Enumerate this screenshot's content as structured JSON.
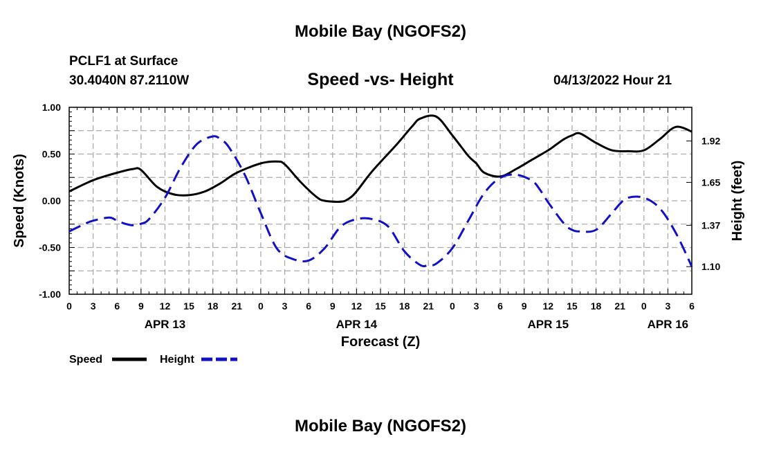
{
  "header": {
    "title": "Mobile Bay (NGOFS2)",
    "station": "PCLF1 at Surface",
    "coords": "30.4040N  87.2110W",
    "chart_title": "Speed -vs- Height",
    "datetime": "04/13/2022 Hour 21"
  },
  "footer": {
    "title": "Mobile Bay (NGOFS2)"
  },
  "colors": {
    "speed": "#000000",
    "height": "#1010c8",
    "grid": "#aaaaaa"
  },
  "chart_data": {
    "type": "line",
    "title": "Speed -vs- Height",
    "xlabel": "Forecast (Z)",
    "ylabel": "Speed (Knots)",
    "y2label": "Height (feet)",
    "x_unit": "hours from 2022-04-13 00Z",
    "xlim": [
      0,
      78
    ],
    "ylim": [
      -1.0,
      1.0
    ],
    "y2lim": [
      0.92,
      2.14
    ],
    "x_tick_labels": [
      "0",
      "3",
      "6",
      "9",
      "12",
      "15",
      "18",
      "21",
      "0",
      "3",
      "6",
      "9",
      "12",
      "15",
      "18",
      "21",
      "0",
      "3",
      "6",
      "9",
      "12",
      "15",
      "18",
      "21",
      "0",
      "3",
      "6"
    ],
    "date_labels": [
      {
        "label": "APR 13",
        "hour": 12
      },
      {
        "label": "APR 14",
        "hour": 36
      },
      {
        "label": "APR 15",
        "hour": 60
      },
      {
        "label": "APR 16",
        "hour": 75
      }
    ],
    "y_tick_labels": [
      "1.00",
      "0.50",
      "0.00",
      "-0.50",
      "-1.00"
    ],
    "y_ticks": [
      1.0,
      0.5,
      0.0,
      -0.5,
      -1.0
    ],
    "y2_tick_labels": [
      "1.92",
      "1.65",
      "1.37",
      "1.10"
    ],
    "y2_ticks": [
      1.92,
      1.65,
      1.37,
      1.1
    ],
    "grid": true,
    "legend_position": "bottom-left",
    "series": [
      {
        "name": "Speed",
        "axis": "left",
        "style": "solid",
        "x": [
          0,
          3,
          6,
          8,
          9,
          11,
          13,
          15,
          17,
          19,
          21,
          24,
          26,
          27,
          29,
          31,
          32,
          34,
          35,
          36,
          38,
          41,
          43,
          44,
          46,
          48,
          50,
          51,
          52,
          54,
          56,
          58,
          60,
          61,
          62,
          63,
          64,
          66,
          68,
          70,
          72,
          74,
          76,
          78
        ],
        "y": [
          0.1,
          0.22,
          0.3,
          0.34,
          0.33,
          0.15,
          0.07,
          0.06,
          0.1,
          0.19,
          0.3,
          0.4,
          0.42,
          0.39,
          0.2,
          0.04,
          0.0,
          -0.01,
          0.02,
          0.1,
          0.32,
          0.6,
          0.8,
          0.88,
          0.9,
          0.7,
          0.48,
          0.4,
          0.3,
          0.26,
          0.34,
          0.44,
          0.54,
          0.6,
          0.66,
          0.7,
          0.72,
          0.62,
          0.54,
          0.53,
          0.54,
          0.66,
          0.79,
          0.74
        ]
      },
      {
        "name": "Height",
        "axis": "right",
        "style": "dashed",
        "x": [
          0,
          2,
          3,
          5,
          6,
          7,
          8,
          9,
          10,
          12,
          14,
          16,
          18,
          19,
          20,
          22,
          24,
          26,
          28,
          30,
          32,
          34,
          36,
          38,
          40,
          42,
          44,
          45,
          46,
          48,
          50,
          52,
          54,
          56,
          58,
          59,
          60,
          62,
          63,
          64,
          66,
          68,
          69,
          70,
          72,
          74,
          76,
          78
        ],
        "y": [
          1.33,
          1.38,
          1.4,
          1.42,
          1.4,
          1.38,
          1.37,
          1.38,
          1.41,
          1.55,
          1.75,
          1.9,
          1.95,
          1.93,
          1.88,
          1.7,
          1.45,
          1.22,
          1.15,
          1.14,
          1.22,
          1.36,
          1.41,
          1.41,
          1.36,
          1.2,
          1.11,
          1.11,
          1.12,
          1.22,
          1.4,
          1.58,
          1.68,
          1.7,
          1.66,
          1.6,
          1.52,
          1.38,
          1.34,
          1.33,
          1.34,
          1.45,
          1.51,
          1.55,
          1.55,
          1.48,
          1.32,
          1.1
        ]
      }
    ]
  },
  "legend": [
    {
      "label": "Speed"
    },
    {
      "label": "Height"
    }
  ]
}
